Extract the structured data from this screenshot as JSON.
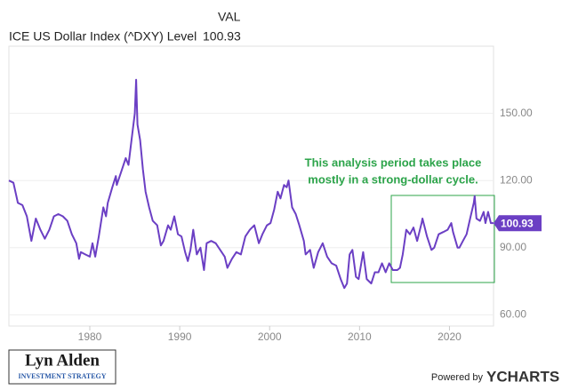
{
  "chart_data": {
    "type": "line",
    "header_column": "VAL",
    "current_value": 100.93,
    "annotation": [
      "This analysis period takes place",
      "mostly in a strong-dollar cycle."
    ],
    "annotation_color": "#2ca44a",
    "x": [
      1971.0,
      1971.5,
      1972,
      1972.5,
      1973,
      1973.5,
      1974,
      1974.5,
      1975,
      1975.5,
      1976,
      1976.5,
      1977,
      1977.5,
      1978,
      1978.5,
      1978.8,
      1979,
      1979.5,
      1980,
      1980.3,
      1980.6,
      1981,
      1981.5,
      1981.8,
      1982,
      1982.5,
      1982.9,
      1983,
      1983.5,
      1984,
      1984.3,
      1984.7,
      1985.0,
      1985.15,
      1985.3,
      1985.6,
      1985.9,
      1986.2,
      1986.6,
      1987,
      1987.5,
      1987.9,
      1988.2,
      1988.7,
      1989,
      1989.4,
      1989.8,
      1990.2,
      1990.6,
      1990.9,
      1991.2,
      1991.5,
      1991.9,
      1992.3,
      1992.7,
      1993,
      1993.5,
      1994,
      1994.5,
      1995,
      1995.3,
      1995.8,
      1996.3,
      1996.8,
      1997.3,
      1997.8,
      1998.3,
      1998.8,
      1999.2,
      1999.7,
      2000.1,
      2000.5,
      2000.9,
      2001.2,
      2001.6,
      2001.9,
      2002.1,
      2002.5,
      2002.9,
      2003.3,
      2003.8,
      2004.0,
      2004.5,
      2004.9,
      2005.4,
      2005.9,
      2006.4,
      2006.9,
      2007.4,
      2007.9,
      2008.3,
      2008.6,
      2008.9,
      2009.2,
      2009.6,
      2009.9,
      2010.4,
      2010.8,
      2011.3,
      2011.7,
      2012.1,
      2012.5,
      2012.9,
      2013.3,
      2013.7,
      2014.2,
      2014.5,
      2014.8,
      2015.2,
      2015.6,
      2016.0,
      2016.4,
      2016.9,
      2017.0,
      2017.5,
      2018.0,
      2018.3,
      2018.8,
      2019.3,
      2019.8,
      2020.2,
      2020.4,
      2020.9,
      2021.1,
      2021.5,
      2021.9,
      2022.3,
      2022.7,
      2022.8,
      2023.0,
      2023.4,
      2023.8,
      2024.0,
      2024.3,
      2024.6,
      2024.9
    ],
    "series": [
      {
        "name": "ICE US Dollar Index (^DXY) Level",
        "color": "#6b3fc4",
        "values": [
          120,
          119,
          110,
          109,
          104,
          93,
          103,
          98,
          94,
          98,
          104,
          105,
          104,
          102,
          96,
          92,
          85,
          88,
          87,
          86,
          92,
          86,
          95,
          108,
          104,
          110,
          117,
          122,
          118,
          124,
          130,
          127,
          140,
          150,
          165,
          145,
          138,
          125,
          115,
          108,
          102,
          100,
          91,
          93,
          100,
          98,
          104,
          96,
          95,
          88,
          84,
          89,
          98,
          87,
          90,
          80,
          92,
          93,
          92,
          89,
          86,
          81,
          85,
          88,
          87,
          95,
          98,
          100,
          92,
          96,
          100,
          101,
          107,
          115,
          112,
          118,
          117,
          120,
          108,
          105,
          100,
          93,
          87,
          89,
          81,
          88,
          92,
          86,
          83,
          82,
          76,
          72,
          74,
          87,
          89,
          77,
          76,
          88,
          76,
          74,
          79,
          79,
          83,
          79,
          83,
          80,
          80,
          81,
          87,
          98,
          96,
          99,
          93,
          101,
          103,
          95,
          89,
          90,
          96,
          97,
          98,
          101,
          97,
          90,
          90,
          93,
          96,
          103,
          110,
          113,
          103,
          102,
          106,
          101,
          106,
          101,
          101
        ]
      }
    ],
    "xlim": [
      1971,
      2024.9
    ],
    "ylim": [
      55,
      180
    ],
    "xticks": [
      1980,
      1990,
      2000,
      2010,
      2020
    ],
    "yticks": [
      {
        "value": 60,
        "label": "60.00"
      },
      {
        "value": 90,
        "label": "90.00"
      },
      {
        "value": 120,
        "label": "120.00"
      },
      {
        "value": 150,
        "label": "150.00"
      }
    ],
    "grid": true,
    "logo": {
      "name": "Lyn Alden",
      "tagline": "INVESTMENT STRATEGY",
      "powered_by": "Powered by",
      "brand": "YCHARTS"
    }
  }
}
